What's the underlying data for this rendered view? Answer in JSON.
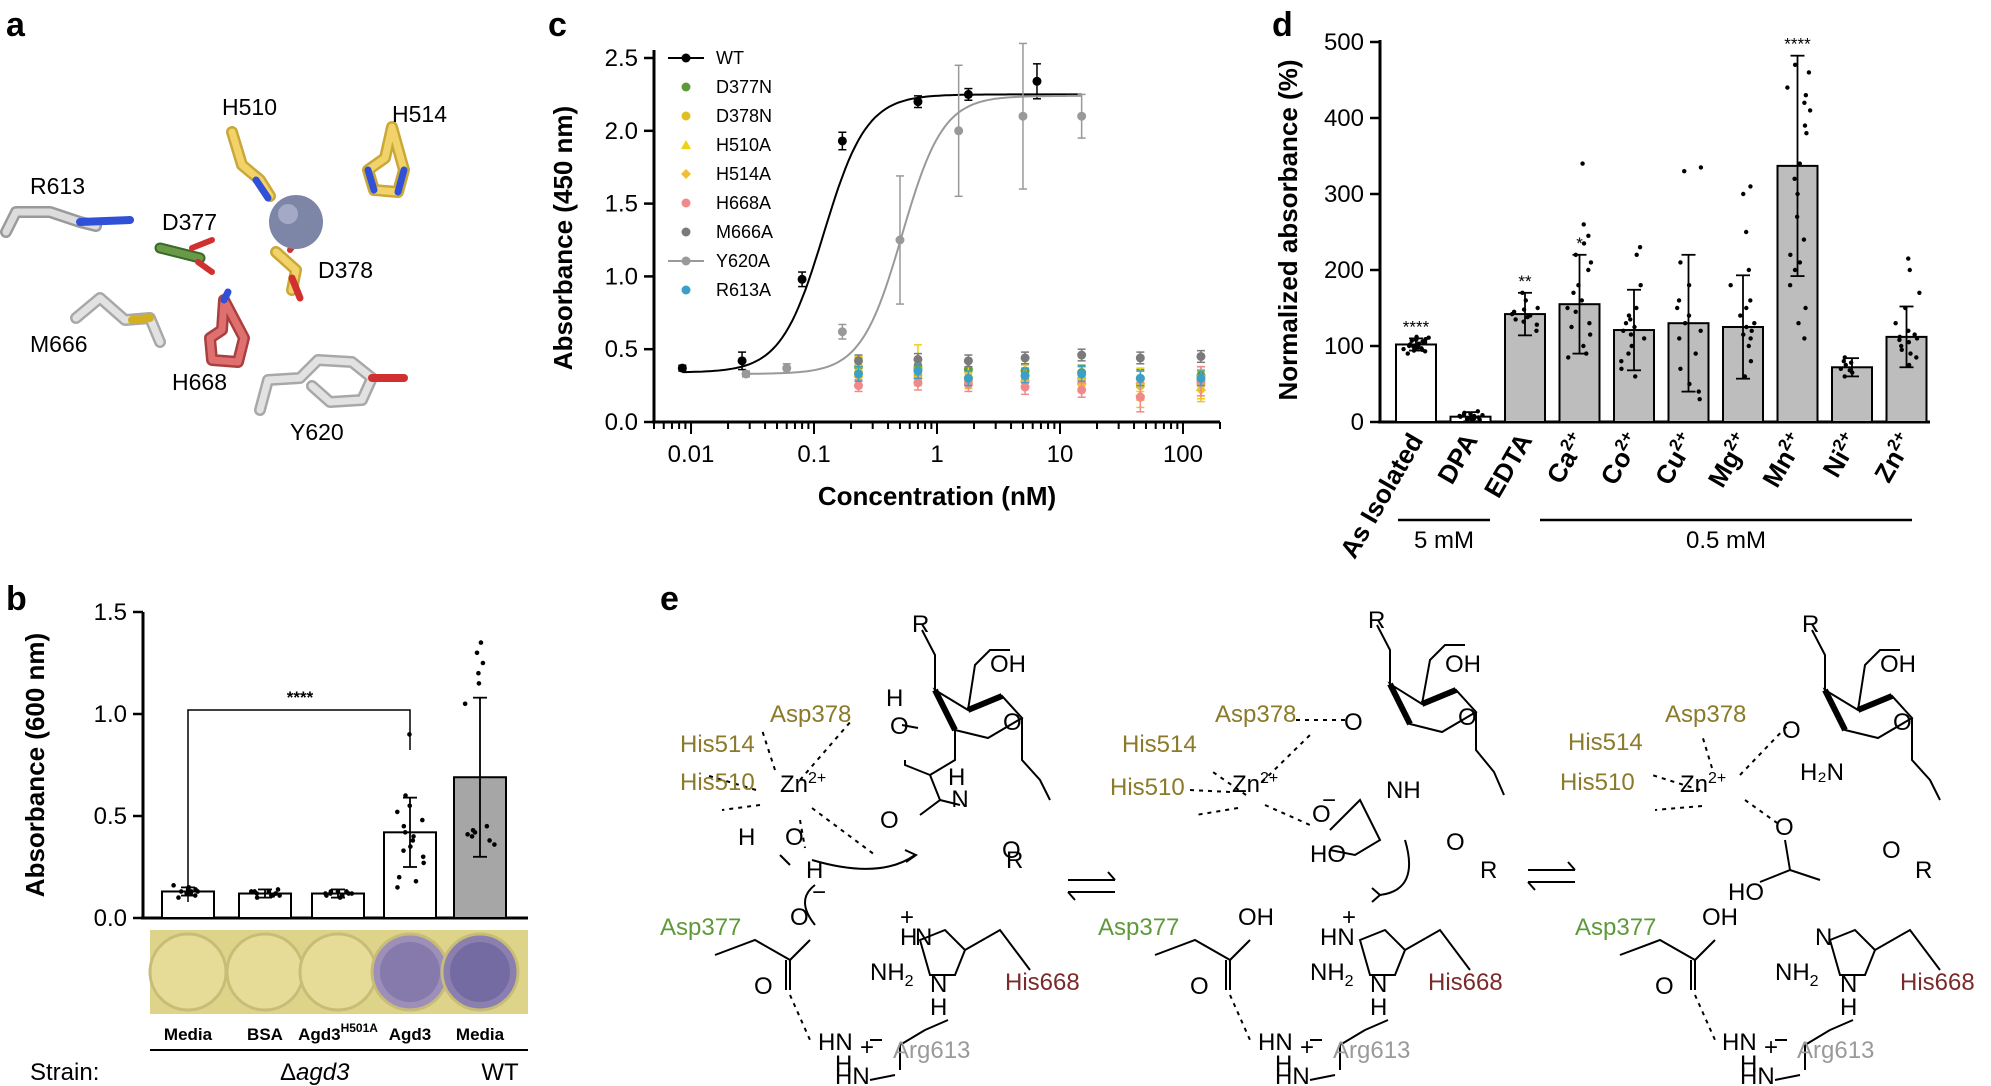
{
  "panels": {
    "a": {
      "label": "a",
      "residues": [
        "H510",
        "H514",
        "R613",
        "D377",
        "D378",
        "M666",
        "H668",
        "Y620"
      ]
    },
    "b": {
      "label": "b",
      "ylabel": "Absorbance (600 nm)",
      "significance": "****",
      "strain_label": "Strain:",
      "group_labels": [
        "Δagd3",
        "WT"
      ],
      "group_label_agd3_prefix": "Δ",
      "group_label_agd3_italic": "agd3",
      "h501a_base": "Agd3",
      "h501a_sup": "H501A"
    },
    "c": {
      "label": "c",
      "ylabel": "Absorbance (450 nm)",
      "xlabel": "Concentration (nM)"
    },
    "d": {
      "label": "d",
      "ylabel": "Normalized absorbance (%)",
      "bracket_labels": [
        "5 mM",
        "0.5 mM"
      ]
    },
    "e": {
      "label": "e",
      "texts": {
        "asp378": "Asp378",
        "his514": "His514",
        "his510": "His510",
        "zn": "Zn",
        "zn_sup": "2+",
        "asp377": "Asp377",
        "his668": "His668",
        "arg613": "Arg613",
        "oh": "OH",
        "o": "O",
        "h": "H",
        "r": "R",
        "nh": "NH",
        "nh2": "NH",
        "n": "N",
        "hn": "HN",
        "h2n": "H₂N",
        "ho": "HO",
        "plus": "+",
        "minus": "−",
        "two": "2"
      }
    }
  },
  "chart_data": [
    {
      "type": "bar",
      "title": "",
      "ylabel": "Absorbance (600 nm)",
      "ylim": [
        0,
        1.5
      ],
      "yticks": [
        "0.0",
        "0.5",
        "1.0",
        "1.5"
      ],
      "categories": [
        "Media",
        "BSA",
        "Agd3H501A",
        "Agd3",
        "Media"
      ],
      "values": [
        0.13,
        0.12,
        0.12,
        0.42,
        0.69
      ],
      "errors": [
        0.02,
        0.02,
        0.02,
        0.17,
        0.39
      ],
      "bar_colors": [
        "#ffffff",
        "#ffffff",
        "#ffffff",
        "#ffffff",
        "#a6a6a6"
      ],
      "points": [
        [
          0.1,
          0.11,
          0.12,
          0.12,
          0.13,
          0.13,
          0.14,
          0.14,
          0.15,
          0.15,
          0.16,
          0.12,
          0.13
        ],
        [
          0.1,
          0.11,
          0.11,
          0.12,
          0.12,
          0.13,
          0.13,
          0.14,
          0.12,
          0.11,
          0.13
        ],
        [
          0.1,
          0.11,
          0.11,
          0.12,
          0.12,
          0.13,
          0.13,
          0.12,
          0.11,
          0.12,
          0.13
        ],
        [
          0.9,
          0.6,
          0.55,
          0.52,
          0.48,
          0.45,
          0.42,
          0.4,
          0.38,
          0.35,
          0.33,
          0.3,
          0.27,
          0.2,
          0.18,
          0.15
        ],
        [
          1.35,
          1.3,
          1.25,
          1.2,
          1.15,
          1.05,
          0.45,
          0.42,
          0.4,
          0.38,
          0.36,
          0.43,
          0.41
        ]
      ]
    },
    {
      "type": "scatter",
      "ylabel": "Absorbance (450 nm)",
      "xlabel": "Concentration (nM)",
      "xscale": "log",
      "xlim": [
        0.005,
        200
      ],
      "ylim": [
        0,
        2.5
      ],
      "xticks": [
        "0.01",
        "0.1",
        "1",
        "10",
        "100"
      ],
      "yticks": [
        "0.0",
        "0.5",
        "1.0",
        "1.5",
        "2.0",
        "2.5"
      ],
      "legend_position": "top-left",
      "series": [
        {
          "name": "WT",
          "color": "#000000",
          "marker": "circle",
          "line": true,
          "x": [
            0.0085,
            0.026,
            0.08,
            0.17,
            0.7,
            1.8,
            6.5
          ],
          "y": [
            0.37,
            0.42,
            0.98,
            1.93,
            2.2,
            2.25,
            2.34
          ],
          "err": [
            0.02,
            0.06,
            0.05,
            0.06,
            0.04,
            0.04,
            0.12
          ]
        },
        {
          "name": "D377N",
          "color": "#5e9a3a",
          "marker": "circle",
          "x": [
            0.23,
            0.7,
            1.8,
            5.2,
            15,
            45,
            140
          ],
          "y": [
            0.38,
            0.37,
            0.36,
            0.35,
            0.34,
            0.3,
            0.32
          ],
          "err": [
            0.06,
            0.05,
            0.05,
            0.05,
            0.05,
            0.06,
            0.06
          ]
        },
        {
          "name": "D378N",
          "color": "#e0c020",
          "marker": "circle",
          "x": [
            0.23,
            0.7,
            1.8,
            5.2,
            15,
            45,
            140
          ],
          "y": [
            0.34,
            0.32,
            0.3,
            0.28,
            0.3,
            0.25,
            0.26
          ],
          "err": [
            0.05,
            0.05,
            0.04,
            0.04,
            0.04,
            0.1,
            0.1
          ]
        },
        {
          "name": "H510A",
          "color": "#f0d010",
          "marker": "triangle",
          "x": [
            0.23,
            0.7,
            1.8,
            5.2,
            15,
            45,
            140
          ],
          "y": [
            0.4,
            0.41,
            0.33,
            0.34,
            0.29,
            0.29,
            0.24
          ],
          "err": [
            0.05,
            0.12,
            0.05,
            0.05,
            0.04,
            0.08,
            0.08
          ]
        },
        {
          "name": "H514A",
          "color": "#f0c030",
          "marker": "diamond",
          "x": [
            0.23,
            0.7,
            1.8,
            5.2,
            15,
            45,
            140
          ],
          "y": [
            0.31,
            0.3,
            0.28,
            0.28,
            0.26,
            0.18,
            0.22
          ],
          "err": [
            0.05,
            0.05,
            0.05,
            0.05,
            0.05,
            0.08,
            0.08
          ]
        },
        {
          "name": "H668A",
          "color": "#f08a8a",
          "marker": "circle",
          "x": [
            0.23,
            0.7,
            1.8,
            5.2,
            15,
            45,
            140
          ],
          "y": [
            0.25,
            0.27,
            0.26,
            0.24,
            0.22,
            0.17,
            0.28
          ],
          "err": [
            0.04,
            0.05,
            0.05,
            0.05,
            0.05,
            0.1,
            0.1
          ]
        },
        {
          "name": "M666A",
          "color": "#7a7a7a",
          "marker": "circle",
          "x": [
            0.23,
            0.7,
            1.8,
            5.2,
            15,
            45,
            140
          ],
          "y": [
            0.42,
            0.43,
            0.42,
            0.44,
            0.46,
            0.44,
            0.45
          ],
          "err": [
            0.04,
            0.04,
            0.04,
            0.04,
            0.04,
            0.04,
            0.04
          ]
        },
        {
          "name": "Y620A",
          "color": "#999999",
          "marker": "circle",
          "line": true,
          "x": [
            0.028,
            0.06,
            0.17,
            0.5,
            1.5,
            5,
            15
          ],
          "y": [
            0.33,
            0.37,
            0.62,
            1.25,
            2.0,
            2.1,
            2.1
          ],
          "err": [
            0.02,
            0.03,
            0.05,
            0.44,
            0.45,
            0.5,
            0.15
          ]
        },
        {
          "name": "R613A",
          "color": "#3aa0c8",
          "marker": "circle",
          "x": [
            0.23,
            0.7,
            1.8,
            5.2,
            15,
            45,
            140
          ],
          "y": [
            0.33,
            0.35,
            0.3,
            0.32,
            0.33,
            0.3,
            0.3
          ],
          "err": [
            0.05,
            0.05,
            0.05,
            0.05,
            0.05,
            0.05,
            0.05
          ]
        }
      ]
    },
    {
      "type": "bar",
      "ylabel": "Normalized absorbance (%)",
      "ylim": [
        0,
        500
      ],
      "yticks": [
        "0",
        "100",
        "200",
        "300",
        "400",
        "500"
      ],
      "categories": [
        "As Isolated",
        "DPA",
        "EDTA",
        "Ca2+",
        "Co2+",
        "Cu2+",
        "Mg2+",
        "Mn2+",
        "Ni2+",
        "Zn2+"
      ],
      "category_bases": [
        "As Isolated",
        "DPA",
        "EDTA",
        "Ca",
        "Co",
        "Cu",
        "Mg",
        "Mn",
        "Ni",
        "Zn"
      ],
      "category_sups": [
        "",
        "",
        "",
        "2+",
        "2+",
        "2+",
        "2+",
        "2+",
        "2+",
        "2+"
      ],
      "values": [
        102,
        7,
        142,
        155,
        121,
        130,
        125,
        337,
        72,
        112
      ],
      "errors": [
        8,
        6,
        28,
        65,
        53,
        90,
        68,
        145,
        12,
        40
      ],
      "significance": [
        "****",
        "",
        "**",
        "*",
        "",
        "",
        "",
        "****",
        "",
        ""
      ],
      "bar_colors": [
        "#ffffff",
        "#ffffff",
        "#bdbdbd",
        "#bdbdbd",
        "#bdbdbd",
        "#bdbdbd",
        "#bdbdbd",
        "#bdbdbd",
        "#bdbdbd",
        "#bdbdbd"
      ],
      "points": [
        [
          90,
          95,
          98,
          100,
          102,
          104,
          106,
          108,
          110,
          112,
          96,
          101,
          103,
          99,
          105,
          107,
          94,
          100,
          111,
          97,
          109,
          93
        ],
        [
          2,
          4,
          5,
          6,
          7,
          8,
          9,
          10,
          12,
          14,
          3,
          5,
          8,
          11,
          6
        ],
        [
          120,
          128,
          135,
          140,
          145,
          150,
          160,
          170,
          138,
          132,
          148,
          142
        ],
        [
          340,
          260,
          245,
          220,
          200,
          180,
          170,
          160,
          150,
          145,
          130,
          125,
          115,
          100,
          90,
          85,
          235,
          210
        ],
        [
          230,
          220,
          180,
          150,
          140,
          130,
          120,
          115,
          110,
          100,
          90,
          80,
          70,
          60,
          125,
          135
        ],
        [
          335,
          330,
          210,
          180,
          150,
          140,
          130,
          110,
          90,
          70,
          50,
          40,
          30,
          160,
          120
        ],
        [
          310,
          300,
          250,
          200,
          180,
          160,
          150,
          130,
          120,
          110,
          100,
          80,
          60,
          140,
          125,
          115
        ],
        [
          470,
          460,
          440,
          430,
          420,
          410,
          390,
          380,
          340,
          320,
          300,
          270,
          240,
          220,
          210,
          200,
          180,
          150,
          130,
          110
        ],
        [
          85,
          80,
          75,
          70,
          65,
          60,
          78,
          68
        ],
        [
          215,
          200,
          170,
          150,
          130,
          120,
          115,
          110,
          105,
          100,
          95,
          90,
          85,
          75,
          108,
          112
        ]
      ]
    }
  ]
}
